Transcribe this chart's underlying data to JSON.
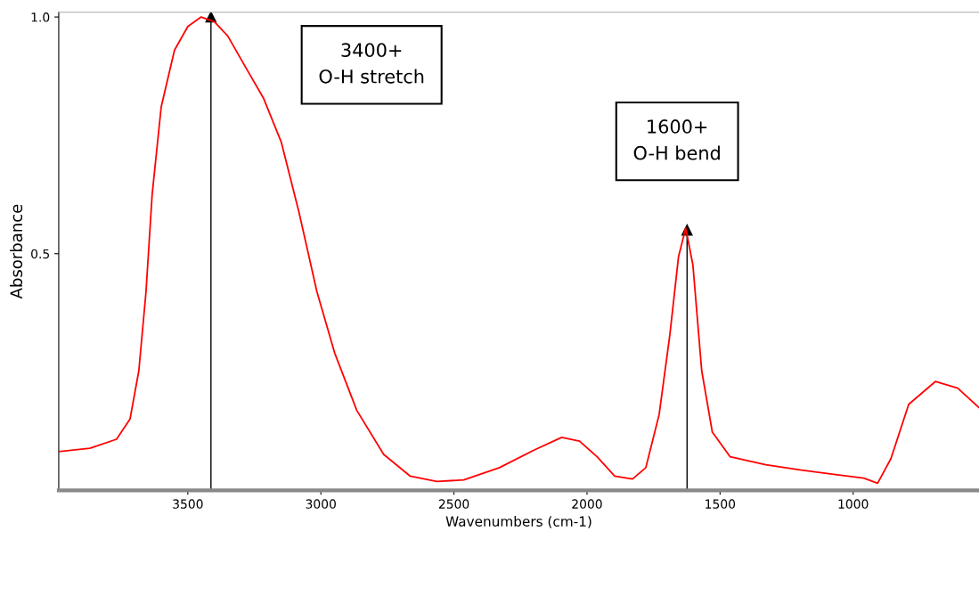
{
  "chart_data": {
    "type": "line",
    "xlabel": "Wavenumbers (cm-1)",
    "ylabel": "Absorbance",
    "xlim": [
      3985,
      527
    ],
    "ylim": [
      0,
      1.01
    ],
    "xticks": [
      3500,
      3000,
      2500,
      2000,
      1500,
      1000
    ],
    "yticks": [
      0.5,
      {
        "value": 1.0,
        "label": "1.0"
      }
    ],
    "grid": false,
    "legend": false,
    "marker": "none",
    "line_style": "solid",
    "series": [
      {
        "color": "#ff0000",
        "x": [
          3985,
          3868,
          3768,
          3717,
          3684,
          3657,
          3634,
          3600,
          3550,
          3500,
          3450,
          3400,
          3350,
          3283,
          3216,
          3149,
          3082,
          3015,
          2948,
          2865,
          2764,
          2664,
          2564,
          2463,
          2329,
          2196,
          2095,
          2028,
          1962,
          1896,
          1829,
          1779,
          1729,
          1689,
          1656,
          1629,
          1602,
          1569,
          1529,
          1462,
          1328,
          1194,
          1060,
          960,
          908,
          858,
          791,
          691,
          607,
          527
        ],
        "values": [
          0.082,
          0.089,
          0.108,
          0.151,
          0.253,
          0.42,
          0.625,
          0.81,
          0.93,
          0.98,
          1.0,
          0.99,
          0.96,
          0.894,
          0.829,
          0.736,
          0.587,
          0.42,
          0.29,
          0.169,
          0.076,
          0.03,
          0.019,
          0.022,
          0.048,
          0.086,
          0.112,
          0.104,
          0.071,
          0.03,
          0.024,
          0.048,
          0.16,
          0.327,
          0.494,
          0.554,
          0.476,
          0.253,
          0.123,
          0.071,
          0.054,
          0.043,
          0.033,
          0.026,
          0.015,
          0.067,
          0.182,
          0.23,
          0.216,
          0.175
        ]
      },
      {
        "type": "line",
        "color": "#000000",
        "marker": "triangle",
        "x": [
          3413,
          3413
        ],
        "values": [
          0,
          1.0
        ]
      },
      {
        "type": "line",
        "color": "#000000",
        "marker": "triangle",
        "x": [
          1624,
          1624
        ],
        "values": [
          0,
          0.55
        ]
      }
    ],
    "annotations": [
      "3400+\nO-H stretch",
      "1600+\nO-H bend"
    ]
  }
}
